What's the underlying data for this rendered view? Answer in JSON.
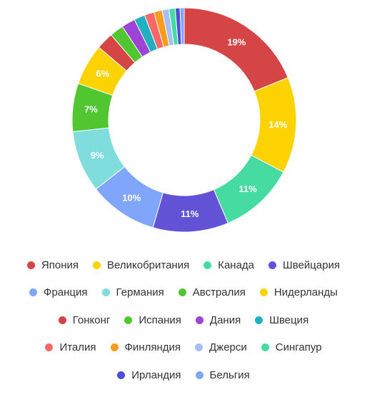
{
  "chart_data": {
    "type": "pie",
    "variant": "donut",
    "title": "",
    "legend_position": "bottom",
    "slices": [
      {
        "name": "Япония",
        "value": 19,
        "label": "19%",
        "color": "#d64545"
      },
      {
        "name": "Великобритания",
        "value": 14,
        "label": "14%",
        "color": "#fcd200"
      },
      {
        "name": "Канада",
        "value": 11,
        "label": "11%",
        "color": "#46dca1"
      },
      {
        "name": "Швейцария",
        "value": 11,
        "label": "11%",
        "color": "#6152d6"
      },
      {
        "name": "Франция",
        "value": 10,
        "label": "10%",
        "color": "#7fa6fb"
      },
      {
        "name": "Германия",
        "value": 9,
        "label": "9%",
        "color": "#7fdddd"
      },
      {
        "name": "Австралия",
        "value": 7,
        "label": "7%",
        "color": "#50c730"
      },
      {
        "name": "Нидерланды",
        "value": 6,
        "label": "6%",
        "color": "#fcd200"
      },
      {
        "name": "Гонконг",
        "value": 2.5,
        "label": "",
        "color": "#d64545"
      },
      {
        "name": "Испания",
        "value": 2,
        "label": "",
        "color": "#50c730"
      },
      {
        "name": "Дания",
        "value": 2,
        "label": "",
        "color": "#9b44d6"
      },
      {
        "name": "Швеция",
        "value": 1.6,
        "label": "",
        "color": "#1fb0c2"
      },
      {
        "name": "Италия",
        "value": 1.4,
        "label": "",
        "color": "#f96767"
      },
      {
        "name": "Финляндия",
        "value": 1.2,
        "label": "",
        "color": "#f99c1c"
      },
      {
        "name": "Джерси",
        "value": 1,
        "label": "",
        "color": "#a5bff8"
      },
      {
        "name": "Сингапур",
        "value": 0.9,
        "label": "",
        "color": "#46dca1"
      },
      {
        "name": "Ирландия",
        "value": 0.7,
        "label": "",
        "color": "#4d4dd6"
      },
      {
        "name": "Бельгия",
        "value": 0.6,
        "label": "",
        "color": "#7fa6fb"
      }
    ]
  }
}
